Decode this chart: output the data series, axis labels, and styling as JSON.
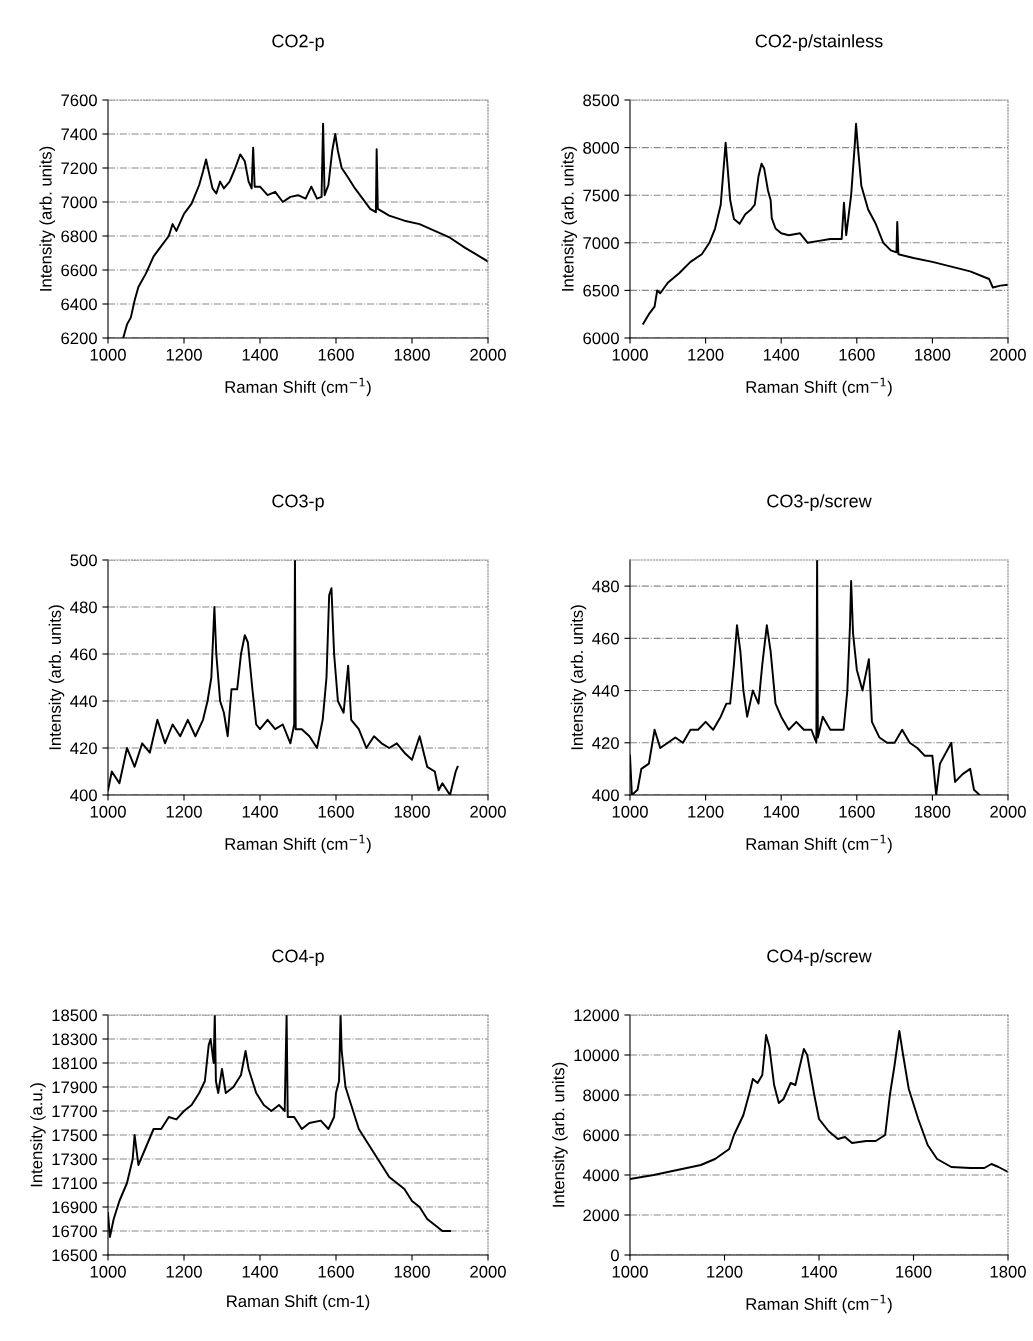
{
  "chart_data": [
    {
      "type": "line",
      "title": "CO2-p",
      "xlabel": "Raman Shift (cm$^{−1}$)",
      "ylabel": "Intensity (arb. units)",
      "xlim": [
        1000,
        2000
      ],
      "ylim": [
        6200,
        7600
      ],
      "xticks": [
        1000,
        1200,
        1400,
        1600,
        1800,
        2000
      ],
      "yticks": [
        6200,
        6400,
        6600,
        6800,
        7000,
        7200,
        7400,
        7600
      ],
      "grid": "y",
      "line_style": "solid",
      "x": [
        1040,
        1050,
        1060,
        1070,
        1080,
        1100,
        1120,
        1140,
        1160,
        1170,
        1180,
        1200,
        1220,
        1240,
        1250,
        1258,
        1265,
        1275,
        1285,
        1295,
        1305,
        1320,
        1335,
        1348,
        1360,
        1370,
        1378,
        1382,
        1386,
        1400,
        1420,
        1440,
        1460,
        1480,
        1500,
        1520,
        1535,
        1550,
        1562,
        1566,
        1570,
        1580,
        1590,
        1598,
        1605,
        1615,
        1630,
        1650,
        1670,
        1690,
        1705,
        1707,
        1710,
        1740,
        1780,
        1820,
        1860,
        1900,
        1940,
        1970,
        2000
      ],
      "series": [
        {
          "color": "#000000",
          "values": [
            6200,
            6280,
            6320,
            6420,
            6500,
            6580,
            6680,
            6740,
            6800,
            6870,
            6830,
            6930,
            6990,
            7100,
            7180,
            7250,
            7180,
            7080,
            7050,
            7120,
            7080,
            7120,
            7200,
            7280,
            7240,
            7120,
            7080,
            7320,
            7090,
            7090,
            7040,
            7060,
            7000,
            7030,
            7040,
            7020,
            7090,
            7020,
            7030,
            7460,
            7040,
            7100,
            7300,
            7400,
            7300,
            7200,
            7150,
            7080,
            7020,
            6960,
            6940,
            7310,
            6960,
            6920,
            6890,
            6870,
            6830,
            6790,
            6730,
            6690,
            6650
          ]
        }
      ]
    },
    {
      "type": "line",
      "title": "CO2-p/stainless",
      "xlabel": "Raman Shift (cm$^{−1}$)",
      "ylabel": "Intensity (arb. units)",
      "xlim": [
        1000,
        2000
      ],
      "ylim": [
        6000,
        8500
      ],
      "xticks": [
        1000,
        1200,
        1400,
        1600,
        1800,
        2000
      ],
      "yticks": [
        6000,
        6500,
        7000,
        7500,
        8000,
        8500
      ],
      "grid": "y",
      "line_style": "solid",
      "x": [
        1035,
        1050,
        1065,
        1072,
        1080,
        1100,
        1130,
        1160,
        1190,
        1210,
        1225,
        1240,
        1248,
        1253,
        1258,
        1265,
        1275,
        1290,
        1305,
        1320,
        1330,
        1340,
        1348,
        1355,
        1365,
        1372,
        1375,
        1385,
        1400,
        1420,
        1450,
        1470,
        1500,
        1530,
        1560,
        1566,
        1572,
        1585,
        1595,
        1598,
        1603,
        1612,
        1630,
        1650,
        1670,
        1690,
        1705,
        1707,
        1710,
        1750,
        1800,
        1850,
        1900,
        1950,
        1960,
        1980,
        2000
      ],
      "series": [
        {
          "color": "#000000",
          "values": [
            6150,
            6250,
            6330,
            6500,
            6470,
            6580,
            6680,
            6800,
            6880,
            7000,
            7150,
            7400,
            7800,
            8050,
            7800,
            7450,
            7250,
            7200,
            7300,
            7350,
            7400,
            7700,
            7830,
            7780,
            7550,
            7450,
            7260,
            7150,
            7100,
            7080,
            7100,
            7000,
            7020,
            7040,
            7040,
            7420,
            7080,
            7500,
            8050,
            8250,
            8000,
            7600,
            7350,
            7200,
            7000,
            6920,
            6900,
            7220,
            6880,
            6840,
            6800,
            6750,
            6700,
            6620,
            6530,
            6550,
            6560
          ]
        }
      ]
    },
    {
      "type": "line",
      "title": "CO3-p",
      "xlabel": "Raman Shift (cm$^{−1}$)",
      "ylabel": "Intensity (arb. units)",
      "xlim": [
        1000,
        2000
      ],
      "ylim": [
        400,
        500
      ],
      "xticks": [
        1000,
        1200,
        1400,
        1600,
        1800,
        2000
      ],
      "yticks": [
        400,
        420,
        440,
        460,
        480,
        500
      ],
      "grid": "y",
      "line_style": "solid",
      "x": [
        1000,
        1010,
        1030,
        1050,
        1070,
        1090,
        1110,
        1130,
        1150,
        1170,
        1190,
        1210,
        1230,
        1250,
        1262,
        1272,
        1280,
        1285,
        1295,
        1305,
        1315,
        1325,
        1340,
        1350,
        1360,
        1368,
        1380,
        1390,
        1400,
        1420,
        1440,
        1460,
        1480,
        1490,
        1492,
        1494,
        1510,
        1530,
        1550,
        1565,
        1575,
        1582,
        1588,
        1595,
        1605,
        1620,
        1632,
        1640,
        1660,
        1680,
        1700,
        1720,
        1740,
        1760,
        1780,
        1800,
        1820,
        1840,
        1860,
        1870,
        1880,
        1900,
        1915,
        1920
      ],
      "series": [
        {
          "color": "#000000",
          "values": [
            402,
            410,
            405,
            420,
            412,
            422,
            418,
            432,
            422,
            430,
            425,
            432,
            425,
            432,
            440,
            450,
            480,
            460,
            440,
            435,
            425,
            445,
            445,
            460,
            468,
            465,
            445,
            430,
            428,
            432,
            428,
            430,
            422,
            430,
            500,
            428,
            428,
            425,
            420,
            432,
            450,
            485,
            488,
            460,
            440,
            435,
            455,
            432,
            428,
            420,
            425,
            422,
            420,
            422,
            418,
            415,
            425,
            412,
            410,
            402,
            405,
            400,
            410,
            412
          ]
        }
      ]
    },
    {
      "type": "line",
      "title": "CO3-p/screw",
      "xlabel": "Raman Shift (cm$^{−1}$)",
      "ylabel": "Intensity (arb. units)",
      "xlim": [
        1000,
        2000
      ],
      "ylim": [
        400,
        490
      ],
      "xticks": [
        1000,
        1200,
        1400,
        1600,
        1800,
        2000
      ],
      "yticks": [
        400,
        420,
        440,
        460,
        480
      ],
      "grid": "y",
      "line_style": "solid",
      "x": [
        1000,
        1005,
        1020,
        1030,
        1050,
        1065,
        1080,
        1100,
        1120,
        1140,
        1160,
        1180,
        1200,
        1220,
        1240,
        1255,
        1265,
        1275,
        1283,
        1292,
        1300,
        1310,
        1325,
        1340,
        1350,
        1362,
        1372,
        1385,
        1400,
        1420,
        1440,
        1460,
        1480,
        1493,
        1495,
        1497,
        1510,
        1530,
        1550,
        1565,
        1575,
        1582,
        1585,
        1590,
        1600,
        1615,
        1632,
        1640,
        1660,
        1680,
        1700,
        1720,
        1740,
        1760,
        1780,
        1800,
        1810,
        1820,
        1850,
        1860,
        1880,
        1900,
        1910,
        1925
      ],
      "series": [
        {
          "color": "#000000",
          "values": [
            415,
            400,
            402,
            410,
            412,
            425,
            418,
            420,
            422,
            420,
            425,
            425,
            428,
            425,
            430,
            435,
            435,
            450,
            465,
            455,
            440,
            430,
            440,
            435,
            450,
            465,
            455,
            435,
            430,
            425,
            428,
            425,
            425,
            420,
            490,
            422,
            430,
            425,
            425,
            425,
            440,
            465,
            482,
            462,
            448,
            440,
            452,
            428,
            422,
            420,
            420,
            425,
            420,
            418,
            415,
            415,
            400,
            412,
            420,
            405,
            408,
            410,
            402,
            400
          ]
        }
      ]
    },
    {
      "type": "line",
      "title": "CO4-p",
      "xlabel": "Raman Shift (cm-1)",
      "ylabel": "Intensity (a.u.)",
      "xlim": [
        1000,
        2000
      ],
      "ylim": [
        16500,
        18500
      ],
      "xticks": [
        1000,
        1200,
        1400,
        1600,
        1800,
        2000
      ],
      "yticks": [
        16500,
        16700,
        16900,
        17100,
        17300,
        17500,
        17700,
        17900,
        18100,
        18300,
        18500
      ],
      "grid": "y",
      "line_style": "solid",
      "x": [
        1000,
        1005,
        1015,
        1030,
        1050,
        1065,
        1070,
        1080,
        1100,
        1120,
        1140,
        1160,
        1180,
        1200,
        1220,
        1240,
        1255,
        1265,
        1270,
        1278,
        1281,
        1284,
        1290,
        1300,
        1310,
        1330,
        1350,
        1362,
        1370,
        1390,
        1410,
        1430,
        1450,
        1465,
        1470,
        1473,
        1490,
        1510,
        1530,
        1560,
        1580,
        1595,
        1600,
        1608,
        1612,
        1615,
        1625,
        1640,
        1660,
        1680,
        1700,
        1720,
        1740,
        1760,
        1780,
        1800,
        1820,
        1840,
        1860,
        1880,
        1900
      ],
      "series": [
        {
          "color": "#000000",
          "values": [
            16850,
            16650,
            16800,
            16950,
            17100,
            17300,
            17500,
            17250,
            17400,
            17550,
            17550,
            17650,
            17630,
            17700,
            17750,
            17850,
            17950,
            18250,
            18300,
            18100,
            18500,
            17950,
            17850,
            18050,
            17850,
            17900,
            18000,
            18200,
            18050,
            17850,
            17750,
            17700,
            17750,
            17700,
            18500,
            17650,
            17650,
            17550,
            17600,
            17620,
            17550,
            17650,
            17850,
            17950,
            18500,
            18200,
            17900,
            17750,
            17550,
            17450,
            17350,
            17250,
            17150,
            17100,
            17050,
            16950,
            16900,
            16800,
            16750,
            16700,
            16700
          ]
        }
      ]
    },
    {
      "type": "line",
      "title": "CO4-p/screw",
      "xlabel": "Raman Shift (cm$^{−1}$)",
      "ylabel": "Intensity (arb. units)",
      "xlim": [
        1000,
        1800
      ],
      "ylim": [
        0,
        12000
      ],
      "xticks": [
        1000,
        1200,
        1400,
        1600,
        1800
      ],
      "yticks": [
        0,
        2000,
        4000,
        6000,
        8000,
        10000,
        12000
      ],
      "grid": "y",
      "line_style": "solid",
      "x": [
        1000,
        1050,
        1100,
        1150,
        1180,
        1210,
        1220,
        1240,
        1255,
        1260,
        1270,
        1280,
        1288,
        1295,
        1305,
        1315,
        1325,
        1340,
        1350,
        1360,
        1368,
        1375,
        1390,
        1400,
        1420,
        1440,
        1455,
        1470,
        1500,
        1520,
        1540,
        1550,
        1560,
        1570,
        1578,
        1590,
        1610,
        1630,
        1650,
        1680,
        1720,
        1750,
        1765,
        1780,
        1800
      ],
      "series": [
        {
          "color": "#000000",
          "values": [
            3800,
            4000,
            4250,
            4500,
            4800,
            5300,
            6000,
            7000,
            8300,
            8800,
            8600,
            9000,
            11000,
            10400,
            8500,
            7600,
            7800,
            8600,
            8500,
            9500,
            10300,
            10000,
            8000,
            6800,
            6200,
            5800,
            5900,
            5600,
            5700,
            5700,
            6000,
            8000,
            9500,
            11200,
            10000,
            8300,
            6800,
            5500,
            4800,
            4400,
            4350,
            4350,
            4550,
            4400,
            4150
          ]
        }
      ]
    }
  ]
}
